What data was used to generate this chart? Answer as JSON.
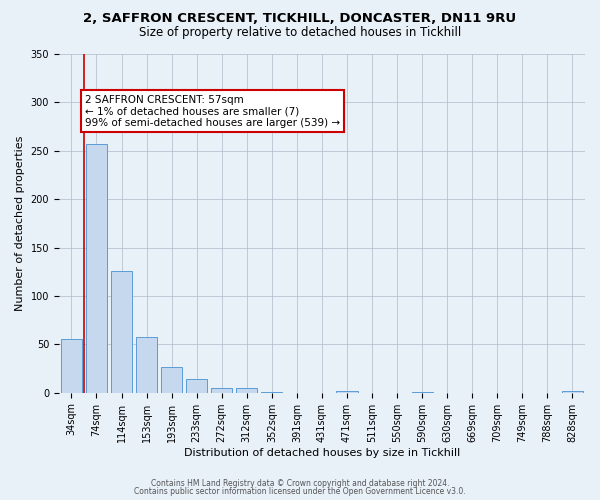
{
  "title_line1": "2, SAFFRON CRESCENT, TICKHILL, DONCASTER, DN11 9RU",
  "title_line2": "Size of property relative to detached houses in Tickhill",
  "xlabel": "Distribution of detached houses by size in Tickhill",
  "ylabel": "Number of detached properties",
  "bar_labels": [
    "34sqm",
    "74sqm",
    "114sqm",
    "153sqm",
    "193sqm",
    "233sqm",
    "272sqm",
    "312sqm",
    "352sqm",
    "391sqm",
    "431sqm",
    "471sqm",
    "511sqm",
    "550sqm",
    "590sqm",
    "630sqm",
    "669sqm",
    "709sqm",
    "749sqm",
    "788sqm",
    "828sqm"
  ],
  "bar_values": [
    55,
    257,
    126,
    58,
    27,
    14,
    5,
    5,
    1,
    0,
    0,
    2,
    0,
    0,
    1,
    0,
    0,
    0,
    0,
    0,
    2
  ],
  "bar_color": "#c5d8ed",
  "bar_edge_color": "#5b9bd5",
  "property_line_color": "#cc0000",
  "annotation_title": "2 SAFFRON CRESCENT: 57sqm",
  "annotation_line1": "← 1% of detached houses are smaller (7)",
  "annotation_line2": "99% of semi-detached houses are larger (539) →",
  "annotation_box_color": "#ffffff",
  "annotation_box_edge_color": "#cc0000",
  "ylim": [
    0,
    350
  ],
  "yticks": [
    0,
    50,
    100,
    150,
    200,
    250,
    300,
    350
  ],
  "background_color": "#e8f0f8",
  "plot_bg_color": "#e8f0f8",
  "footer_line1": "Contains HM Land Registry data © Crown copyright and database right 2024.",
  "footer_line2": "Contains public sector information licensed under the Open Government Licence v3.0.",
  "title_fontsize": 9.5,
  "subtitle_fontsize": 8.5,
  "xlabel_fontsize": 8,
  "ylabel_fontsize": 8,
  "tick_fontsize": 7,
  "annotation_fontsize": 7.5
}
